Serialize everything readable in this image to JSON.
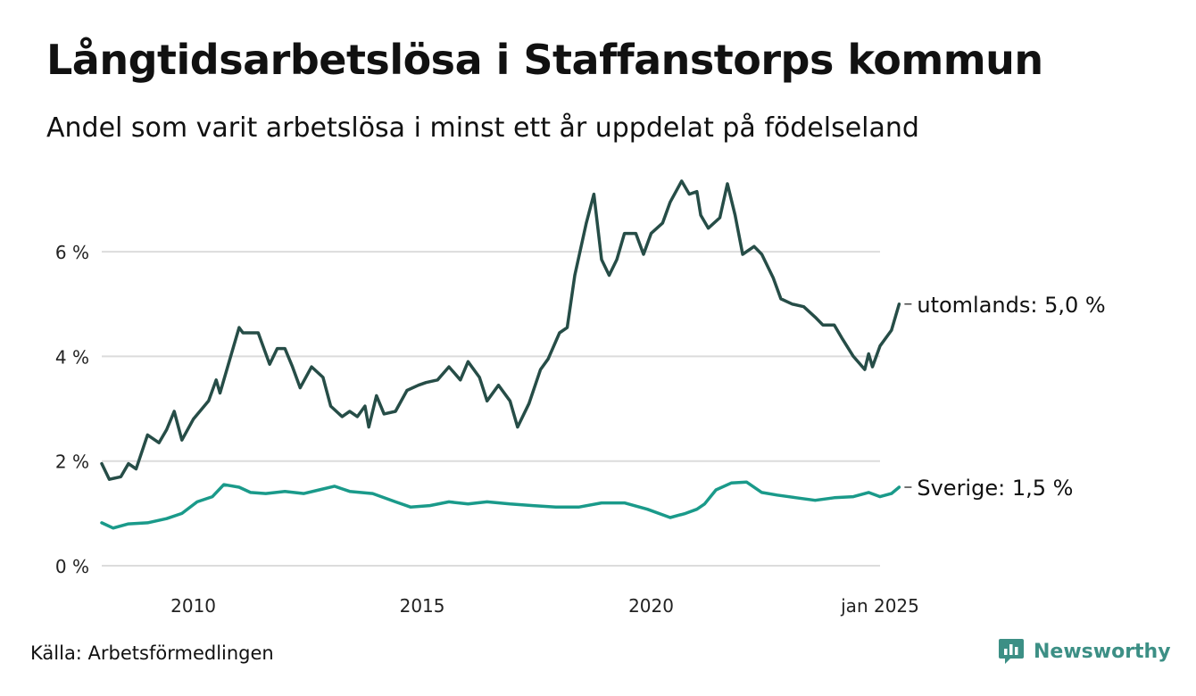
{
  "title": "Långtidsarbetslösa i Staffanstorps kommun",
  "subtitle": "Andel som varit arbetslösa i minst ett år uppdelat på födelseland",
  "source": "Källa: Arbetsförmedlingen",
  "brand": {
    "name": "Newsworthy",
    "color": "#3c8f85",
    "icon": "bar-chart-speech-bubble-icon"
  },
  "chart_data": {
    "type": "line",
    "x_start": "2008-01",
    "x_end": "2025-01",
    "x_step": "month",
    "xticks": [
      {
        "date": "2010-01",
        "label": "2010"
      },
      {
        "date": "2015-01",
        "label": "2015"
      },
      {
        "date": "2020-01",
        "label": "2020"
      },
      {
        "date": "2025-01",
        "label": "jan 2025"
      }
    ],
    "ylim": [
      0,
      7.4
    ],
    "yticks": [
      {
        "value": 0,
        "label": "0 %"
      },
      {
        "value": 2,
        "label": "2 %"
      },
      {
        "value": 4,
        "label": "4 %"
      },
      {
        "value": 6,
        "label": "6 %"
      }
    ],
    "grid": true,
    "series": [
      {
        "name": "utomlands",
        "end_label": "utomlands: 5,0 %",
        "color": "#264d47",
        "anchors": [
          [
            "2008-01",
            1.95
          ],
          [
            "2008-03",
            1.65
          ],
          [
            "2008-06",
            1.7
          ],
          [
            "2008-08",
            1.95
          ],
          [
            "2008-10",
            1.85
          ],
          [
            "2009-01",
            2.5
          ],
          [
            "2009-04",
            2.35
          ],
          [
            "2009-06",
            2.6
          ],
          [
            "2009-08",
            2.95
          ],
          [
            "2009-10",
            2.4
          ],
          [
            "2010-01",
            2.8
          ],
          [
            "2010-05",
            3.15
          ],
          [
            "2010-07",
            3.55
          ],
          [
            "2010-08",
            3.3
          ],
          [
            "2010-11",
            4.05
          ],
          [
            "2011-01",
            4.55
          ],
          [
            "2011-02",
            4.45
          ],
          [
            "2011-06",
            4.45
          ],
          [
            "2011-09",
            3.85
          ],
          [
            "2011-11",
            4.15
          ],
          [
            "2012-01",
            4.15
          ],
          [
            "2012-03",
            3.8
          ],
          [
            "2012-05",
            3.4
          ],
          [
            "2012-08",
            3.8
          ],
          [
            "2012-11",
            3.6
          ],
          [
            "2013-01",
            3.05
          ],
          [
            "2013-04",
            2.85
          ],
          [
            "2013-06",
            2.95
          ],
          [
            "2013-08",
            2.85
          ],
          [
            "2013-10",
            3.05
          ],
          [
            "2013-11",
            2.65
          ],
          [
            "2014-01",
            3.25
          ],
          [
            "2014-03",
            2.9
          ],
          [
            "2014-06",
            2.95
          ],
          [
            "2014-09",
            3.35
          ],
          [
            "2014-12",
            3.45
          ],
          [
            "2015-02",
            3.5
          ],
          [
            "2015-05",
            3.55
          ],
          [
            "2015-08",
            3.8
          ],
          [
            "2015-11",
            3.55
          ],
          [
            "2016-01",
            3.9
          ],
          [
            "2016-04",
            3.6
          ],
          [
            "2016-06",
            3.15
          ],
          [
            "2016-09",
            3.45
          ],
          [
            "2016-12",
            3.15
          ],
          [
            "2017-02",
            2.65
          ],
          [
            "2017-05",
            3.1
          ],
          [
            "2017-08",
            3.75
          ],
          [
            "2017-10",
            3.95
          ],
          [
            "2018-01",
            4.45
          ],
          [
            "2018-03",
            4.55
          ],
          [
            "2018-05",
            5.55
          ],
          [
            "2018-08",
            6.55
          ],
          [
            "2018-10",
            7.1
          ],
          [
            "2018-12",
            5.85
          ],
          [
            "2019-02",
            5.55
          ],
          [
            "2019-04",
            5.85
          ],
          [
            "2019-06",
            6.35
          ],
          [
            "2019-09",
            6.35
          ],
          [
            "2019-11",
            5.95
          ],
          [
            "2020-01",
            6.35
          ],
          [
            "2020-04",
            6.55
          ],
          [
            "2020-06",
            6.95
          ],
          [
            "2020-09",
            7.35
          ],
          [
            "2020-11",
            7.1
          ],
          [
            "2021-01",
            7.15
          ],
          [
            "2021-02",
            6.7
          ],
          [
            "2021-04",
            6.45
          ],
          [
            "2021-07",
            6.65
          ],
          [
            "2021-09",
            7.3
          ],
          [
            "2021-11",
            6.7
          ],
          [
            "2022-01",
            5.95
          ],
          [
            "2022-04",
            6.1
          ],
          [
            "2022-06",
            5.95
          ],
          [
            "2022-09",
            5.5
          ],
          [
            "2022-11",
            5.1
          ],
          [
            "2023-02",
            5.0
          ],
          [
            "2023-05",
            4.95
          ],
          [
            "2023-08",
            4.75
          ],
          [
            "2023-10",
            4.6
          ],
          [
            "2024-01",
            4.6
          ],
          [
            "2024-03",
            4.35
          ],
          [
            "2024-06",
            4.0
          ],
          [
            "2024-09",
            3.75
          ],
          [
            "2024-10",
            4.05
          ],
          [
            "2024-11",
            3.8
          ],
          [
            "2025-01",
            4.2
          ],
          [
            "2025-04",
            4.5
          ],
          [
            "2025-06",
            5.0
          ]
        ]
      },
      {
        "name": "Sverige",
        "end_label": "Sverige: 1,5 %",
        "color": "#1a9a8a",
        "anchors": [
          [
            "2008-01",
            0.82
          ],
          [
            "2008-04",
            0.72
          ],
          [
            "2008-08",
            0.8
          ],
          [
            "2009-01",
            0.82
          ],
          [
            "2009-06",
            0.9
          ],
          [
            "2009-10",
            1.0
          ],
          [
            "2010-02",
            1.22
          ],
          [
            "2010-06",
            1.32
          ],
          [
            "2010-09",
            1.55
          ],
          [
            "2011-01",
            1.5
          ],
          [
            "2011-04",
            1.4
          ],
          [
            "2011-08",
            1.38
          ],
          [
            "2012-01",
            1.42
          ],
          [
            "2012-06",
            1.38
          ],
          [
            "2012-10",
            1.45
          ],
          [
            "2013-02",
            1.52
          ],
          [
            "2013-06",
            1.42
          ],
          [
            "2013-12",
            1.38
          ],
          [
            "2014-06",
            1.22
          ],
          [
            "2014-10",
            1.12
          ],
          [
            "2015-03",
            1.15
          ],
          [
            "2015-08",
            1.22
          ],
          [
            "2016-01",
            1.18
          ],
          [
            "2016-06",
            1.22
          ],
          [
            "2016-12",
            1.18
          ],
          [
            "2017-06",
            1.15
          ],
          [
            "2017-12",
            1.12
          ],
          [
            "2018-06",
            1.12
          ],
          [
            "2018-12",
            1.2
          ],
          [
            "2019-06",
            1.2
          ],
          [
            "2019-12",
            1.08
          ],
          [
            "2020-06",
            0.92
          ],
          [
            "2020-10",
            1.0
          ],
          [
            "2021-01",
            1.08
          ],
          [
            "2021-03",
            1.18
          ],
          [
            "2021-06",
            1.45
          ],
          [
            "2021-10",
            1.58
          ],
          [
            "2022-02",
            1.6
          ],
          [
            "2022-06",
            1.4
          ],
          [
            "2022-10",
            1.35
          ],
          [
            "2023-03",
            1.3
          ],
          [
            "2023-08",
            1.25
          ],
          [
            "2024-01",
            1.3
          ],
          [
            "2024-06",
            1.32
          ],
          [
            "2024-10",
            1.4
          ],
          [
            "2025-01",
            1.32
          ],
          [
            "2025-04",
            1.38
          ],
          [
            "2025-06",
            1.5
          ]
        ]
      }
    ]
  }
}
